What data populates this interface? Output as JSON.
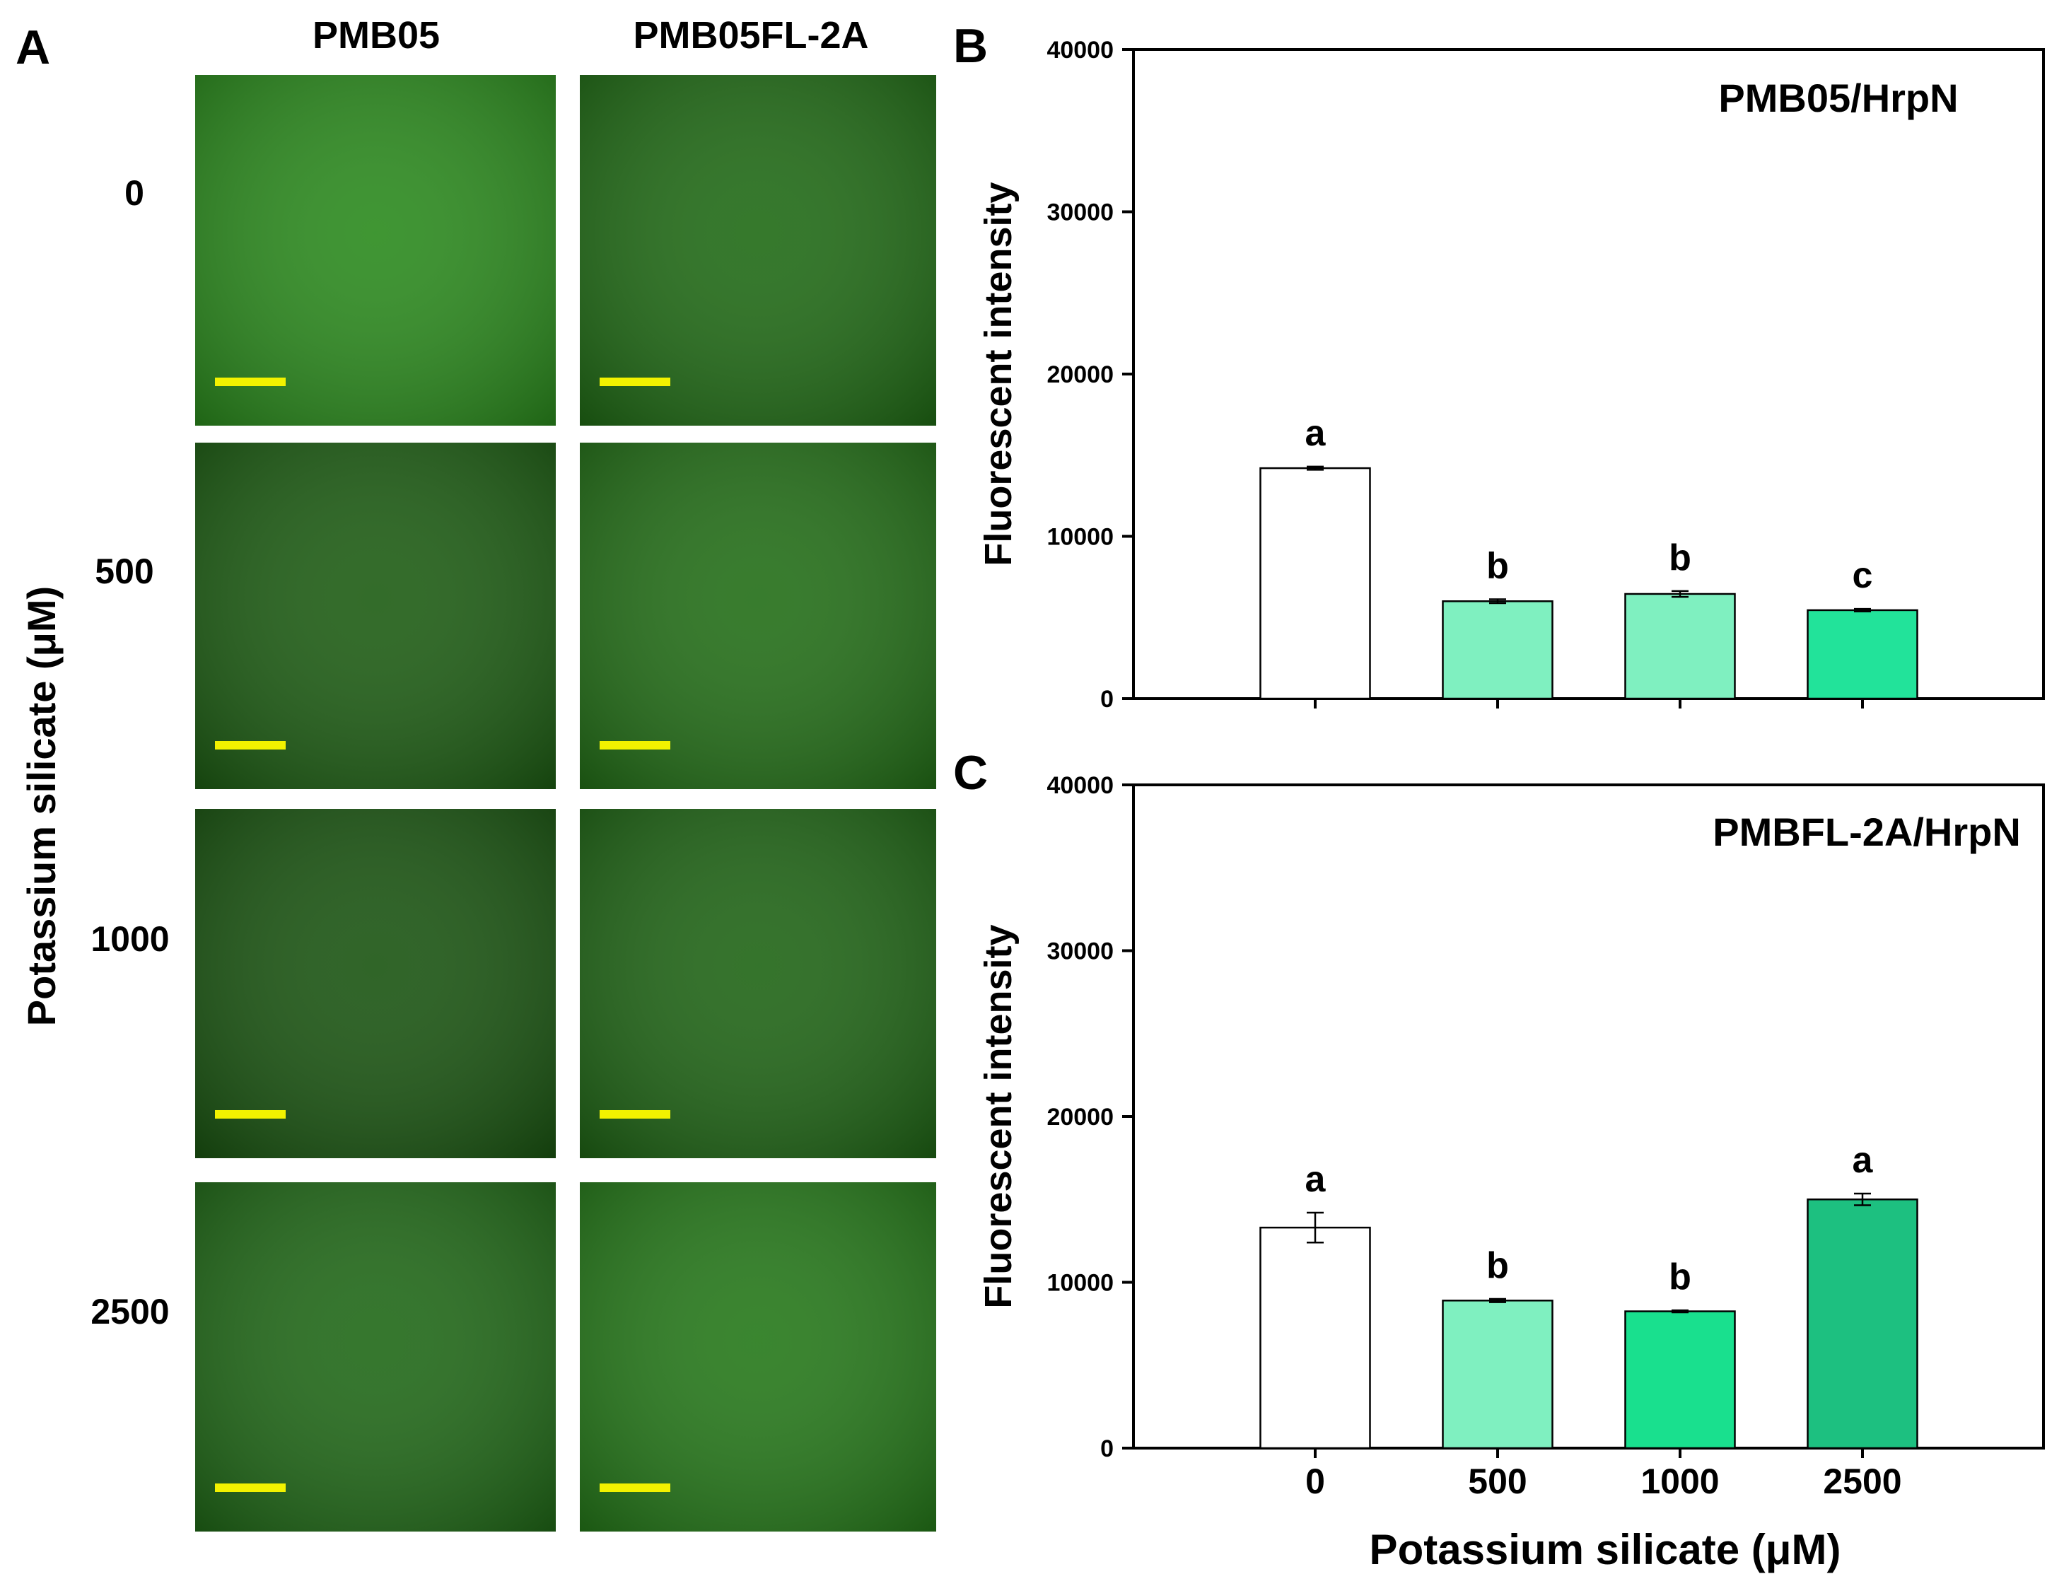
{
  "panel_a": {
    "label": "A",
    "columns": [
      "PMB05",
      "PMB05FL-2A"
    ],
    "row_labels": [
      "0",
      "500",
      "1000",
      "2500"
    ],
    "y_label": "Potassium silicate (μM)",
    "micrographs": [
      [
        "#2a8a1c",
        "#1f6a14"
      ],
      [
        "#1c5c12",
        "#226e16"
      ],
      [
        "#195410",
        "#1e6414"
      ],
      [
        "#1f6816",
        "#247818"
      ]
    ]
  },
  "chart_data": [
    {
      "type": "bar",
      "panel": "B",
      "title": "PMB05/HrpN",
      "xlabel": "",
      "ylabel": "Fluorescent intensity",
      "categories": [
        "0",
        "500",
        "1000",
        "2500"
      ],
      "show_x_tick_labels": false,
      "values": [
        14200,
        6000,
        6450,
        5450
      ],
      "errors": [
        100,
        120,
        180,
        80
      ],
      "letters": [
        "a",
        "b",
        "b",
        "c"
      ],
      "colors": [
        "#ffffff",
        "#7ff0c0",
        "#7ff0c0",
        "#22e39a"
      ],
      "ylim": [
        0,
        40000
      ],
      "yticks": [
        0,
        10000,
        20000,
        30000,
        40000
      ],
      "grid": false
    },
    {
      "type": "bar",
      "panel": "C",
      "title": "PMBFL-2A/HrpN",
      "xlabel": "Potassium silicate (μM)",
      "ylabel": "Fluorescent intensity",
      "categories": [
        "0",
        "500",
        "1000",
        "2500"
      ],
      "show_x_tick_labels": true,
      "values": [
        13300,
        8900,
        8250,
        15000
      ],
      "errors": [
        900,
        100,
        60,
        350
      ],
      "letters": [
        "a",
        "b",
        "b",
        "a"
      ],
      "colors": [
        "#ffffff",
        "#7ff0c0",
        "#19e08e",
        "#1dc080"
      ],
      "ylim": [
        0,
        40000
      ],
      "yticks": [
        0,
        10000,
        20000,
        30000,
        40000
      ],
      "grid": false
    }
  ]
}
